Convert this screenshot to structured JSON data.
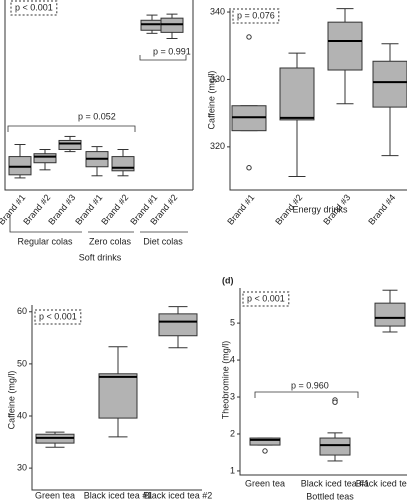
{
  "chart_data": [
    {
      "type": "box",
      "x_label": "Soft drinks",
      "categories": [
        "Brand #1",
        "Brand #2",
        "Brand #3",
        "Brand #1",
        "Brand #2",
        "Brand #1",
        "Brand #2"
      ],
      "groups": [
        "Regular colas",
        "Zero colas",
        "Diet colas"
      ],
      "ylim": [
        0,
        100
      ],
      "color": "#b3b3b3",
      "boxes": [
        {
          "min": 6.3,
          "q1": 7.9,
          "median": 12.1,
          "q3": 17.4,
          "max": 23.7
        },
        {
          "min": 10.5,
          "q1": 14.2,
          "median": 17.4,
          "q3": 18.9,
          "max": 21.1
        },
        {
          "min": 20,
          "q1": 21.1,
          "median": 24.2,
          "q3": 25.8,
          "max": 27.9
        },
        {
          "min": 7.4,
          "q1": 12.1,
          "median": 16.3,
          "q3": 20,
          "max": 22.6
        },
        {
          "min": 7.4,
          "q1": 10,
          "median": 11.6,
          "q3": 17.4,
          "max": 21.1
        },
        {
          "min": 81.6,
          "q1": 83.2,
          "median": 86.3,
          "q3": 88.4,
          "max": 91.1
        },
        {
          "min": 78.9,
          "q1": 82.1,
          "median": 86.3,
          "q3": 89.5,
          "max": 91.6
        }
      ],
      "annotations": [
        "p < 0.001",
        "p = 0.991",
        "p = 0.052"
      ]
    },
    {
      "type": "box",
      "x_label": "Energy drinks",
      "y_label": "Caffeine (mg/l)",
      "categories": [
        "Brand #1",
        "Brand #2",
        "Brand #3",
        "Brand #4"
      ],
      "ylim": [
        313.6,
        340.6
      ],
      "yticks": [
        320,
        330,
        340
      ],
      "color": "#b3b3b3",
      "boxes": [
        {
          "min": 322.4,
          "q1": 322.4,
          "median": 324.4,
          "q3": 326.1,
          "max": 326.1,
          "outliers": [
            336.3,
            316.9
          ]
        },
        {
          "min": 315.6,
          "q1": 324,
          "median": 324.3,
          "q3": 331.7,
          "max": 333.9
        },
        {
          "min": 326.4,
          "q1": 331.4,
          "median": 335.7,
          "q3": 338.5,
          "max": 340.5
        },
        {
          "min": 318.7,
          "q1": 325.9,
          "median": 329.6,
          "q3": 332.7,
          "max": 335.3
        }
      ],
      "annotations": [
        "p = 0.076"
      ]
    },
    {
      "type": "box",
      "y_label": "Caffeine (mg/l)",
      "categories": [
        "Green tea",
        "Black iced tea #1",
        "Black iced tea #2"
      ],
      "ylim": [
        25.8,
        61.3
      ],
      "yticks": [
        30,
        40,
        50,
        60
      ],
      "color": "#b3b3b3",
      "boxes": [
        {
          "min": 34,
          "q1": 34.8,
          "median": 35.8,
          "q3": 36.5,
          "max": 36.9
        },
        {
          "min": 36,
          "q1": 39.6,
          "median": 47.5,
          "q3": 48.1,
          "max": 53.3
        },
        {
          "min": 53.1,
          "q1": 55.4,
          "median": 58.1,
          "q3": 59.6,
          "max": 61
        }
      ],
      "annotations": [
        "p < 0.001"
      ]
    },
    {
      "type": "box",
      "title": "(d)",
      "x_label": "Bottled teas",
      "y_label": "Theobromine (mg/l)",
      "categories": [
        "Green tea",
        "Black iced tea #1",
        "Black iced tea #2"
      ],
      "ylim": [
        0.89,
        5.95
      ],
      "yticks": [
        1,
        2,
        3,
        4,
        5
      ],
      "color": "#b3b3b3",
      "boxes": [
        {
          "min": 1.7,
          "q1": 1.7,
          "median": 1.84,
          "q3": 1.89,
          "max": 1.89,
          "outliers": [
            1.54
          ]
        },
        {
          "min": 1.27,
          "q1": 1.43,
          "median": 1.7,
          "q3": 1.89,
          "max": 2.03,
          "outliers": [
            2.92,
            2.86
          ]
        },
        {
          "min": 4.76,
          "q1": 4.92,
          "median": 5.14,
          "q3": 5.54,
          "max": 5.89
        }
      ],
      "annotations": [
        "p < 0.001",
        "p = 0.960"
      ]
    }
  ]
}
